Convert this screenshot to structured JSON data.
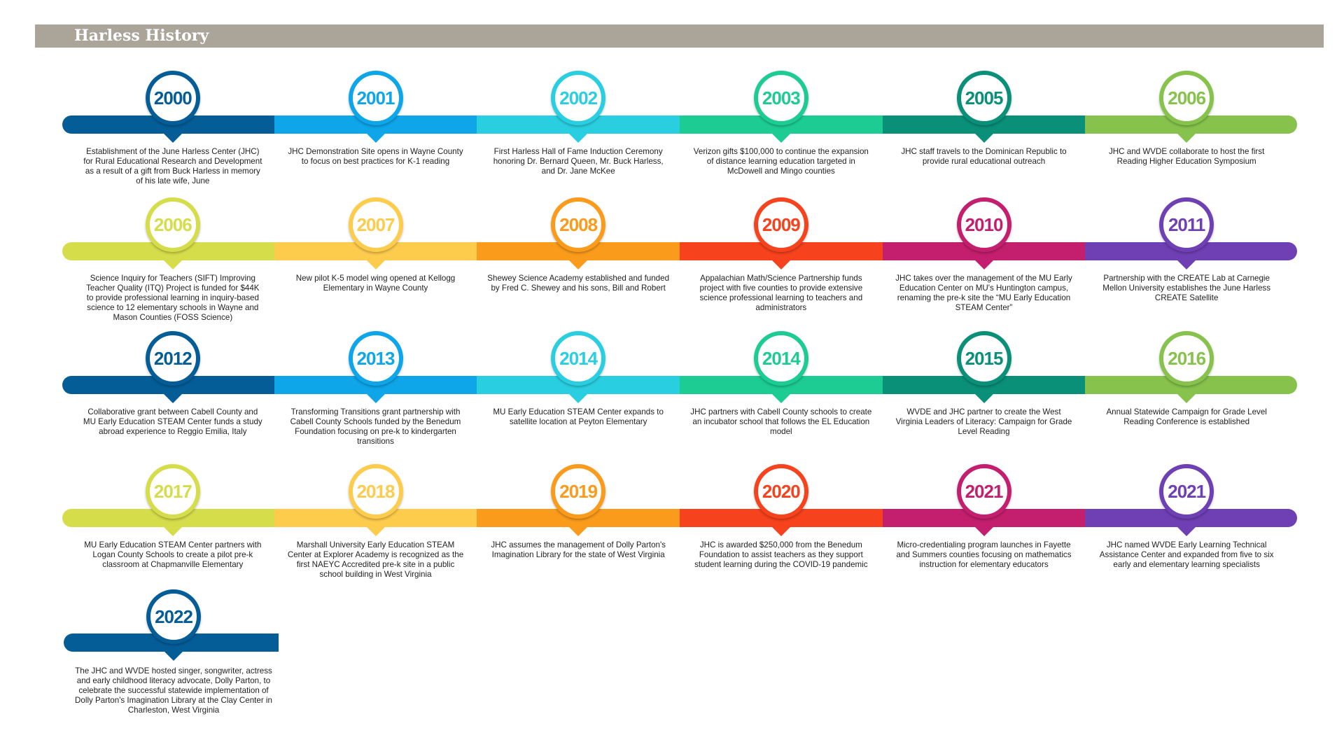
{
  "header": {
    "title": "Harless History"
  },
  "palettes": {
    "row_a": [
      "#045d97",
      "#0ea5e9",
      "#29cfe0",
      "#1ccc93",
      "#0a8f78",
      "#86c24c"
    ],
    "row_b": [
      "#d6dd4a",
      "#fdcc4d",
      "#fa9b1c",
      "#f6421d",
      "#c31f6e",
      "#6f3fb4"
    ]
  },
  "rows": [
    {
      "palette": "row_a",
      "items": [
        {
          "year": "2000",
          "text": "Establishment of the June Harless Center (JHC) for Rural Educational Research and Development as a result of a gift from Buck Harless in memory of his late wife, June"
        },
        {
          "year": "2001",
          "text": "JHC Demonstration Site opens in Wayne County to focus on best practices for K-1 reading"
        },
        {
          "year": "2002",
          "text": "First Harless Hall of Fame Induction Ceremony honoring Dr. Bernard Queen, Mr. Buck Harless, and Dr. Jane McKee"
        },
        {
          "year": "2003",
          "text": "Verizon gifts $100,000 to continue the expansion of distance learning education targeted in McDowell and Mingo counties"
        },
        {
          "year": "2005",
          "text": "JHC staff travels to the Dominican Republic to provide rural educational outreach"
        },
        {
          "year": "2006",
          "text": "JHC and WVDE collaborate to host the first Reading Higher Education Symposium"
        }
      ]
    },
    {
      "palette": "row_b",
      "items": [
        {
          "year": "2006",
          "text": "Science Inquiry for Teachers (SIFT) Improving Teacher Quality (ITQ) Project is funded for $44K to provide professional learning in inquiry-based science to 12 elementary schools in Wayne and Mason Counties (FOSS Science)"
        },
        {
          "year": "2007",
          "text": "New pilot K-5 model wing opened at Kellogg Elementary in Wayne County"
        },
        {
          "year": "2008",
          "text": "Shewey Science Academy established and funded by Fred C. Shewey and his sons, Bill and Robert"
        },
        {
          "year": "2009",
          "text": "Appalachian Math/Science Partnership funds project with five counties to provide extensive science professional learning to teachers and administrators"
        },
        {
          "year": "2010",
          "text": "JHC takes over the management of the MU Early Education Center on MU's Huntington campus, renaming the pre-k site the “MU Early Education STEAM Center”"
        },
        {
          "year": "2011",
          "text": "Partnership with the CREATE Lab at Carnegie Mellon University establishes the June Harless CREATE Satellite"
        }
      ]
    },
    {
      "palette": "row_a",
      "items": [
        {
          "year": "2012",
          "text": "Collaborative grant between Cabell County and MU Early Education STEAM Center funds a study abroad experience to Reggio Emilia, Italy"
        },
        {
          "year": "2013",
          "text": "Transforming Transitions grant partnership with Cabell County Schools funded by the Benedum Foundation focusing on pre-k to kindergarten transitions"
        },
        {
          "year": "2014",
          "text": "MU Early Education STEAM Center expands to satellite location at Peyton Elementary"
        },
        {
          "year": "2014",
          "text": "JHC partners with Cabell County schools to create an incubator school that follows the EL Education model"
        },
        {
          "year": "2015",
          "text": "WVDE and JHC partner to create the West Virginia Leaders of Literacy: Campaign for Grade Level Reading"
        },
        {
          "year": "2016",
          "text": "Annual Statewide Campaign for Grade Level Reading Conference is established"
        }
      ]
    },
    {
      "palette": "row_b",
      "items": [
        {
          "year": "2017",
          "text": "MU Early Education STEAM Center partners with Logan County Schools to create a pilot pre-k classroom at Chapmanville Elementary"
        },
        {
          "year": "2018",
          "text": "Marshall University Early Education STEAM Center at Explorer Academy is recognized as the first NAEYC Accredited pre-k site in a public school building in West Virginia"
        },
        {
          "year": "2019",
          "text": "JHC assumes the management of Dolly Parton's Imagination Library for the state of West Virginia"
        },
        {
          "year": "2020",
          "text": "JHC is awarded $250,000 from the Benedum Foundation to assist teachers as they support student learning during the COVID-19 pandemic"
        },
        {
          "year": "2021",
          "text": "Micro-credentialing program launches in Fayette and Summers counties focusing on mathematics instruction for elementary educators"
        },
        {
          "year": "2021",
          "text": "JHC named WVDE Early Learning Technical Assistance Center and expanded from five to six early and elementary learning specialists"
        }
      ]
    }
  ],
  "final": {
    "year": "2022",
    "color": "#045d97",
    "text": "The JHC and WVDE hosted singer, songwriter, actress and early childhood literacy advocate, Dolly Parton, to celebrate the successful statewide implementation of Dolly Parton's Imagination Library at the Clay Center in Charleston, West Virginia"
  }
}
